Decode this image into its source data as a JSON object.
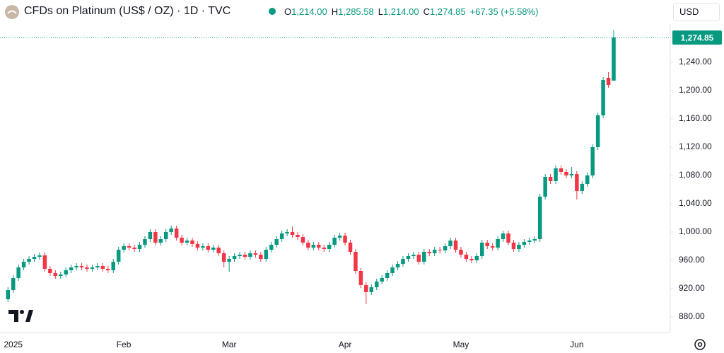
{
  "header": {
    "title": "CFDs on Platinum (US$ / OZ) · 1D · TVC",
    "ohlc": [
      {
        "key": "O",
        "text": "1,214.00"
      },
      {
        "key": "H",
        "text": "1,285.58"
      },
      {
        "key": "L",
        "text": "1,214.00"
      },
      {
        "key": "C",
        "text": "1,274.85"
      }
    ],
    "change": "+67.35 (+5.58%)",
    "currency": "USD"
  },
  "chart_data": {
    "type": "candlestick",
    "categories": [
      null,
      "2025",
      null,
      null,
      null,
      null,
      null,
      null,
      null,
      null,
      null,
      null,
      null,
      null,
      null,
      null,
      null,
      null,
      null,
      null,
      null,
      null,
      "Feb",
      null,
      null,
      null,
      null,
      null,
      null,
      null,
      null,
      null,
      null,
      null,
      null,
      null,
      null,
      null,
      null,
      null,
      null,
      null,
      "Mar",
      null,
      null,
      null,
      null,
      null,
      null,
      null,
      null,
      null,
      null,
      null,
      null,
      null,
      null,
      null,
      null,
      null,
      null,
      null,
      null,
      null,
      "Apr",
      null,
      null,
      null,
      null,
      null,
      null,
      null,
      null,
      null,
      null,
      null,
      null,
      null,
      null,
      null,
      null,
      null,
      null,
      null,
      null,
      null,
      "May",
      null,
      null,
      null,
      null,
      null,
      null,
      null,
      null,
      null,
      null,
      null,
      null,
      null,
      null,
      null,
      null,
      null,
      null,
      null,
      null,
      null,
      "Jun",
      null,
      null,
      null,
      null,
      null,
      null,
      null
    ],
    "open": [
      905,
      918,
      935,
      950,
      958,
      962,
      965,
      967,
      948,
      942,
      938,
      940,
      946,
      950,
      952,
      950,
      948,
      950,
      952,
      948,
      946,
      958,
      975,
      980,
      978,
      976,
      982,
      990,
      1000,
      985,
      990,
      1000,
      1005,
      992,
      985,
      988,
      983,
      978,
      980,
      975,
      978,
      970,
      958,
      962,
      966,
      968,
      965,
      970,
      968,
      962,
      975,
      982,
      990,
      998,
      1000,
      996,
      993,
      985,
      978,
      982,
      978,
      976,
      982,
      992,
      995,
      985,
      972,
      945,
      925,
      915,
      922,
      930,
      935,
      942,
      950,
      955,
      962,
      966,
      968,
      958,
      972,
      970,
      975,
      974,
      980,
      988,
      975,
      968,
      962,
      960,
      966,
      985,
      980,
      978,
      990,
      998,
      985,
      976,
      982,
      986,
      988,
      990,
      1050,
      1078,
      1072,
      1090,
      1085,
      1080,
      1082,
      1058,
      1068,
      1080,
      1120,
      1165,
      1218,
      1214
    ],
    "high": [
      922,
      939,
      954,
      962,
      966,
      969,
      971,
      971,
      952,
      946,
      944,
      950,
      954,
      956,
      956,
      954,
      954,
      956,
      956,
      952,
      962,
      979,
      984,
      984,
      982,
      986,
      994,
      1004,
      1004,
      994,
      1004,
      1009,
      1009,
      996,
      992,
      992,
      987,
      984,
      984,
      982,
      982,
      974,
      966,
      970,
      972,
      972,
      974,
      974,
      972,
      979,
      986,
      994,
      1002,
      1004,
      1008,
      1000,
      997,
      989,
      986,
      986,
      982,
      986,
      996,
      999,
      999,
      989,
      976,
      949,
      929,
      926,
      934,
      939,
      946,
      954,
      959,
      966,
      970,
      972,
      972,
      976,
      976,
      979,
      979,
      984,
      992,
      992,
      979,
      972,
      966,
      970,
      989,
      989,
      984,
      994,
      1002,
      1002,
      989,
      986,
      990,
      992,
      994,
      1054,
      1082,
      1082,
      1094,
      1094,
      1089,
      1092,
      1086,
      1072,
      1084,
      1124,
      1169,
      1219,
      1226,
      1285.58
    ],
    "low": [
      901,
      914,
      931,
      946,
      954,
      958,
      961,
      944,
      938,
      934,
      934,
      936,
      942,
      946,
      946,
      944,
      944,
      946,
      944,
      942,
      942,
      954,
      971,
      974,
      972,
      972,
      978,
      986,
      981,
      981,
      986,
      996,
      988,
      981,
      981,
      979,
      974,
      974,
      971,
      971,
      966,
      950,
      944,
      958,
      962,
      961,
      961,
      964,
      958,
      958,
      971,
      978,
      986,
      994,
      992,
      989,
      981,
      974,
      974,
      974,
      972,
      972,
      978,
      988,
      981,
      968,
      941,
      921,
      898,
      911,
      918,
      926,
      931,
      938,
      946,
      951,
      958,
      962,
      954,
      954,
      966,
      966,
      970,
      970,
      976,
      971,
      964,
      958,
      956,
      956,
      962,
      976,
      974,
      974,
      986,
      981,
      972,
      972,
      978,
      982,
      984,
      986,
      1046,
      1068,
      1068,
      1081,
      1076,
      1076,
      1046,
      1054,
      1064,
      1076,
      1116,
      1161,
      1204,
      1214
    ],
    "close": [
      918,
      935,
      950,
      958,
      962,
      965,
      967,
      948,
      942,
      938,
      940,
      946,
      950,
      952,
      950,
      948,
      950,
      952,
      948,
      946,
      958,
      975,
      980,
      978,
      976,
      982,
      990,
      1000,
      985,
      990,
      1000,
      1005,
      992,
      985,
      988,
      983,
      978,
      980,
      975,
      978,
      970,
      958,
      962,
      966,
      968,
      965,
      970,
      968,
      962,
      975,
      982,
      990,
      998,
      1000,
      996,
      993,
      985,
      978,
      982,
      978,
      976,
      982,
      992,
      995,
      985,
      972,
      945,
      925,
      915,
      922,
      930,
      935,
      942,
      950,
      955,
      962,
      966,
      968,
      958,
      972,
      970,
      975,
      974,
      980,
      988,
      975,
      968,
      962,
      960,
      966,
      985,
      980,
      978,
      990,
      998,
      985,
      976,
      982,
      986,
      988,
      990,
      1050,
      1078,
      1072,
      1090,
      1085,
      1080,
      1082,
      1058,
      1068,
      1080,
      1120,
      1165,
      1215,
      1208,
      1274.85
    ],
    "up_color": "#089981",
    "down_color": "#f23645",
    "last_price_label": "1,274.85",
    "ylim": [
      863,
      1328
    ],
    "yticks": [
      {
        "value": 880,
        "label": "880.00"
      },
      {
        "value": 920,
        "label": "920.00"
      },
      {
        "value": 960,
        "label": "960.00"
      },
      {
        "value": 1000,
        "label": "1,000.00"
      },
      {
        "value": 1040,
        "label": "1,040.00"
      },
      {
        "value": 1080,
        "label": "1,080.00"
      },
      {
        "value": 1120,
        "label": "1,120.00"
      },
      {
        "value": 1160,
        "label": "1,160.00"
      },
      {
        "value": 1200,
        "label": "1,200.00"
      },
      {
        "value": 1240,
        "label": "1,240.00"
      }
    ],
    "grid": false
  }
}
